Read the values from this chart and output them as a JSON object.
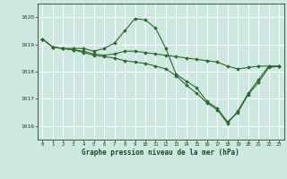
{
  "background_color": "#cce8e0",
  "grid_color": "#ffffff",
  "line_color": "#2d6a2d",
  "marker_color": "#2d6a2d",
  "xlabel": "Graphe pression niveau de la mer (hPa)",
  "xlabel_color": "#1a4a1a",
  "tick_color": "#1a4a1a",
  "ylim": [
    1015.5,
    1020.5
  ],
  "xlim": [
    -0.5,
    23.5
  ],
  "yticks": [
    1016,
    1017,
    1018,
    1019,
    1020
  ],
  "xticks": [
    0,
    1,
    2,
    3,
    4,
    5,
    6,
    7,
    8,
    9,
    10,
    11,
    12,
    13,
    14,
    15,
    16,
    17,
    18,
    19,
    20,
    21,
    22,
    23
  ],
  "series": [
    [
      1019.2,
      1018.9,
      1018.85,
      1018.85,
      1018.85,
      1018.75,
      1018.85,
      1019.05,
      1019.5,
      1019.95,
      1019.9,
      1019.6,
      1018.85,
      1017.9,
      1017.65,
      1017.4,
      1016.9,
      1016.65,
      1016.15,
      1016.5,
      1017.15,
      1017.6,
      1018.15,
      1018.2
    ],
    [
      1019.2,
      1018.9,
      1018.85,
      1018.8,
      1018.75,
      1018.65,
      1018.6,
      1018.65,
      1018.75,
      1018.75,
      1018.7,
      1018.65,
      1018.6,
      1018.55,
      1018.5,
      1018.45,
      1018.4,
      1018.35,
      1018.2,
      1018.1,
      1018.15,
      1018.2,
      1018.2,
      1018.2
    ],
    [
      1019.2,
      1018.9,
      1018.85,
      1018.8,
      1018.7,
      1018.6,
      1018.55,
      1018.5,
      1018.4,
      1018.35,
      1018.3,
      1018.2,
      1018.1,
      1017.85,
      1017.5,
      1017.2,
      1016.85,
      1016.6,
      1016.1,
      1016.55,
      1017.2,
      1017.7,
      1018.2,
      1018.2
    ]
  ]
}
